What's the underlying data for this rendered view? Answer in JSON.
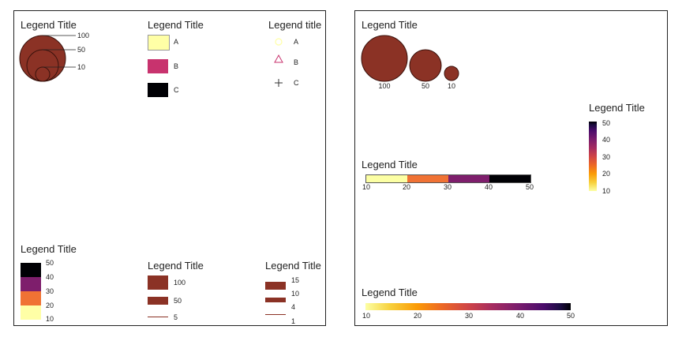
{
  "colors": {
    "bubble_fill": "#8B3225",
    "bubble_stroke": "#3a120c",
    "cat_a": "#FFFFA6",
    "cat_b": "#C8336E",
    "cat_c": "#000004",
    "inferno_10": "#FCFFA4",
    "inferno_20": "#F07234",
    "inferno_30": "#7E1E6C",
    "inferno_40": "#000004"
  },
  "left_panel": {
    "nested_size": {
      "title": "Legend Title",
      "labels": [
        "100",
        "50",
        "10"
      ],
      "values": [
        100,
        50,
        10
      ]
    },
    "fill_categorical": {
      "title": "Legend Title",
      "items": [
        {
          "label": "A",
          "color": "#FFFFA6"
        },
        {
          "label": "B",
          "color": "#C8336E"
        },
        {
          "label": "C",
          "color": "#000004"
        }
      ]
    },
    "shape_categorical": {
      "title": "Legend title",
      "items": [
        {
          "label": "A",
          "shape": "circle-icon",
          "color": "#FFFFA6"
        },
        {
          "label": "B",
          "shape": "triangle-icon",
          "color": "#C8336E"
        },
        {
          "label": "C",
          "shape": "plus-icon",
          "color": "#333333"
        }
      ]
    },
    "binned_fill": {
      "title": "Legend Title",
      "breaks": [
        "50",
        "40",
        "30",
        "20",
        "10"
      ],
      "colors": [
        "#000004",
        "#7E1E6C",
        "#F07234",
        "#FFFFA6"
      ]
    },
    "size_bars": {
      "title": "Legend Title",
      "labels": [
        "100",
        "50",
        "5"
      ],
      "values": [
        100,
        50,
        5
      ]
    },
    "line_width": {
      "title": "Legend Title",
      "labels": [
        "15",
        "10",
        "4",
        "1"
      ],
      "values": [
        15,
        10,
        4,
        1
      ]
    }
  },
  "right_panel": {
    "size_bubbles": {
      "title": "Legend Title",
      "labels": [
        "100",
        "50",
        "10"
      ],
      "values": [
        100,
        50,
        10
      ]
    },
    "vertical_gradient": {
      "title": "Legend Title",
      "labels": [
        "50",
        "40",
        "30",
        "20",
        "10"
      ],
      "min": 10,
      "max": 50
    },
    "horizontal_binned": {
      "title": "Legend Title",
      "labels": [
        "10",
        "20",
        "30",
        "40",
        "50"
      ],
      "colors": [
        "#FCFFA4",
        "#F07234",
        "#7E1E6C",
        "#000004"
      ]
    },
    "horizontal_gradient": {
      "title": "Legend Title",
      "labels": [
        "10",
        "20",
        "30",
        "40",
        "50"
      ],
      "min": 10,
      "max": 50
    }
  }
}
